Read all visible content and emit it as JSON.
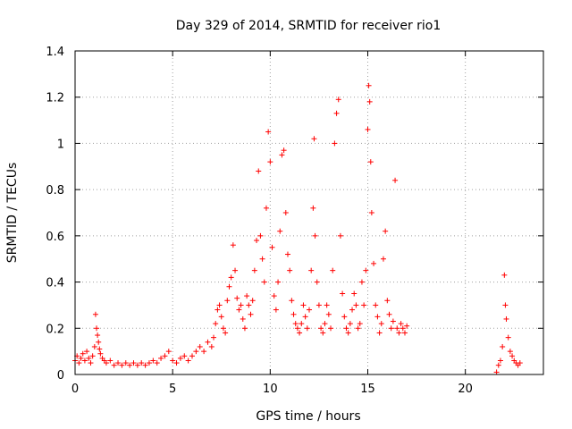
{
  "chart_data": {
    "type": "scatter",
    "title": "Day 329 of 2014, SRMTID for receiver rio1",
    "xlabel": "GPS time / hours",
    "ylabel": "SRMTID / TECUs",
    "xlim": [
      0,
      24
    ],
    "ylim": [
      0,
      1.4
    ],
    "xticks": [
      0,
      5,
      10,
      15,
      20
    ],
    "yticks": [
      0,
      0.2,
      0.4,
      0.6,
      0.8,
      1,
      1.2,
      1.4
    ],
    "xtick_labels": [
      "0",
      "5",
      "10",
      "15",
      "20"
    ],
    "ytick_labels": [
      "0",
      "0.2",
      "0.4",
      "0.6",
      "0.8",
      "1",
      "1.2",
      "1.4"
    ],
    "grid": true,
    "marker": "+",
    "color": "#ff0000",
    "series": [
      {
        "name": "SRMTID",
        "points": [
          [
            0.0,
            0.06
          ],
          [
            0.1,
            0.08
          ],
          [
            0.2,
            0.05
          ],
          [
            0.3,
            0.07
          ],
          [
            0.4,
            0.09
          ],
          [
            0.5,
            0.06
          ],
          [
            0.6,
            0.1
          ],
          [
            0.7,
            0.07
          ],
          [
            0.8,
            0.05
          ],
          [
            0.9,
            0.08
          ],
          [
            1.0,
            0.12
          ],
          [
            1.05,
            0.26
          ],
          [
            1.1,
            0.2
          ],
          [
            1.15,
            0.17
          ],
          [
            1.2,
            0.14
          ],
          [
            1.25,
            0.11
          ],
          [
            1.3,
            0.09
          ],
          [
            1.4,
            0.07
          ],
          [
            1.5,
            0.06
          ],
          [
            1.6,
            0.05
          ],
          [
            1.8,
            0.06
          ],
          [
            2.0,
            0.04
          ],
          [
            2.2,
            0.05
          ],
          [
            2.4,
            0.04
          ],
          [
            2.6,
            0.05
          ],
          [
            2.8,
            0.04
          ],
          [
            3.0,
            0.05
          ],
          [
            3.2,
            0.04
          ],
          [
            3.4,
            0.05
          ],
          [
            3.6,
            0.04
          ],
          [
            3.8,
            0.05
          ],
          [
            4.0,
            0.06
          ],
          [
            4.2,
            0.05
          ],
          [
            4.4,
            0.07
          ],
          [
            4.6,
            0.08
          ],
          [
            4.8,
            0.1
          ],
          [
            5.0,
            0.06
          ],
          [
            5.2,
            0.05
          ],
          [
            5.4,
            0.07
          ],
          [
            5.6,
            0.08
          ],
          [
            5.8,
            0.06
          ],
          [
            6.0,
            0.08
          ],
          [
            6.2,
            0.1
          ],
          [
            6.4,
            0.12
          ],
          [
            6.6,
            0.1
          ],
          [
            6.8,
            0.14
          ],
          [
            7.0,
            0.12
          ],
          [
            7.1,
            0.16
          ],
          [
            7.2,
            0.22
          ],
          [
            7.3,
            0.28
          ],
          [
            7.4,
            0.3
          ],
          [
            7.5,
            0.25
          ],
          [
            7.6,
            0.2
          ],
          [
            7.7,
            0.18
          ],
          [
            7.8,
            0.32
          ],
          [
            7.9,
            0.38
          ],
          [
            8.0,
            0.42
          ],
          [
            8.1,
            0.56
          ],
          [
            8.2,
            0.45
          ],
          [
            8.3,
            0.33
          ],
          [
            8.4,
            0.28
          ],
          [
            8.5,
            0.3
          ],
          [
            8.6,
            0.24
          ],
          [
            8.7,
            0.2
          ],
          [
            8.8,
            0.34
          ],
          [
            8.9,
            0.3
          ],
          [
            9.0,
            0.26
          ],
          [
            9.1,
            0.32
          ],
          [
            9.2,
            0.45
          ],
          [
            9.3,
            0.58
          ],
          [
            9.4,
            0.88
          ],
          [
            9.5,
            0.6
          ],
          [
            9.6,
            0.5
          ],
          [
            9.7,
            0.4
          ],
          [
            9.8,
            0.72
          ],
          [
            9.9,
            1.05
          ],
          [
            10.0,
            0.92
          ],
          [
            10.1,
            0.55
          ],
          [
            10.2,
            0.34
          ],
          [
            10.3,
            0.28
          ],
          [
            10.4,
            0.4
          ],
          [
            10.5,
            0.62
          ],
          [
            10.6,
            0.95
          ],
          [
            10.7,
            0.97
          ],
          [
            10.8,
            0.7
          ],
          [
            10.9,
            0.52
          ],
          [
            11.0,
            0.45
          ],
          [
            11.1,
            0.32
          ],
          [
            11.2,
            0.26
          ],
          [
            11.3,
            0.22
          ],
          [
            11.4,
            0.2
          ],
          [
            11.5,
            0.18
          ],
          [
            11.6,
            0.22
          ],
          [
            11.7,
            0.3
          ],
          [
            11.8,
            0.25
          ],
          [
            11.9,
            0.2
          ],
          [
            12.0,
            0.28
          ],
          [
            12.1,
            0.45
          ],
          [
            12.2,
            0.72
          ],
          [
            12.25,
            1.02
          ],
          [
            12.3,
            0.6
          ],
          [
            12.4,
            0.4
          ],
          [
            12.5,
            0.3
          ],
          [
            12.6,
            0.2
          ],
          [
            12.7,
            0.18
          ],
          [
            12.8,
            0.22
          ],
          [
            12.9,
            0.3
          ],
          [
            13.0,
            0.26
          ],
          [
            13.1,
            0.2
          ],
          [
            13.2,
            0.45
          ],
          [
            13.3,
            1.0
          ],
          [
            13.4,
            1.13
          ],
          [
            13.5,
            1.19
          ],
          [
            13.6,
            0.6
          ],
          [
            13.7,
            0.35
          ],
          [
            13.8,
            0.25
          ],
          [
            13.9,
            0.2
          ],
          [
            14.0,
            0.18
          ],
          [
            14.1,
            0.22
          ],
          [
            14.2,
            0.28
          ],
          [
            14.3,
            0.35
          ],
          [
            14.4,
            0.3
          ],
          [
            14.5,
            0.2
          ],
          [
            14.6,
            0.22
          ],
          [
            14.7,
            0.4
          ],
          [
            14.8,
            0.3
          ],
          [
            14.9,
            0.45
          ],
          [
            15.0,
            1.06
          ],
          [
            15.05,
            1.25
          ],
          [
            15.1,
            1.18
          ],
          [
            15.15,
            0.92
          ],
          [
            15.2,
            0.7
          ],
          [
            15.3,
            0.48
          ],
          [
            15.4,
            0.3
          ],
          [
            15.5,
            0.25
          ],
          [
            15.6,
            0.18
          ],
          [
            15.7,
            0.22
          ],
          [
            15.8,
            0.5
          ],
          [
            15.9,
            0.62
          ],
          [
            16.0,
            0.32
          ],
          [
            16.1,
            0.26
          ],
          [
            16.2,
            0.2
          ],
          [
            16.3,
            0.23
          ],
          [
            16.4,
            0.84
          ],
          [
            16.5,
            0.2
          ],
          [
            16.6,
            0.18
          ],
          [
            16.7,
            0.22
          ],
          [
            16.8,
            0.2
          ],
          [
            16.9,
            0.18
          ],
          [
            17.0,
            0.21
          ],
          [
            21.6,
            0.01
          ],
          [
            21.7,
            0.04
          ],
          [
            21.8,
            0.06
          ],
          [
            21.9,
            0.12
          ],
          [
            22.0,
            0.43
          ],
          [
            22.05,
            0.3
          ],
          [
            22.1,
            0.24
          ],
          [
            22.2,
            0.16
          ],
          [
            22.3,
            0.1
          ],
          [
            22.4,
            0.08
          ],
          [
            22.5,
            0.06
          ],
          [
            22.6,
            0.05
          ],
          [
            22.7,
            0.04
          ],
          [
            22.8,
            0.05
          ]
        ]
      }
    ]
  }
}
